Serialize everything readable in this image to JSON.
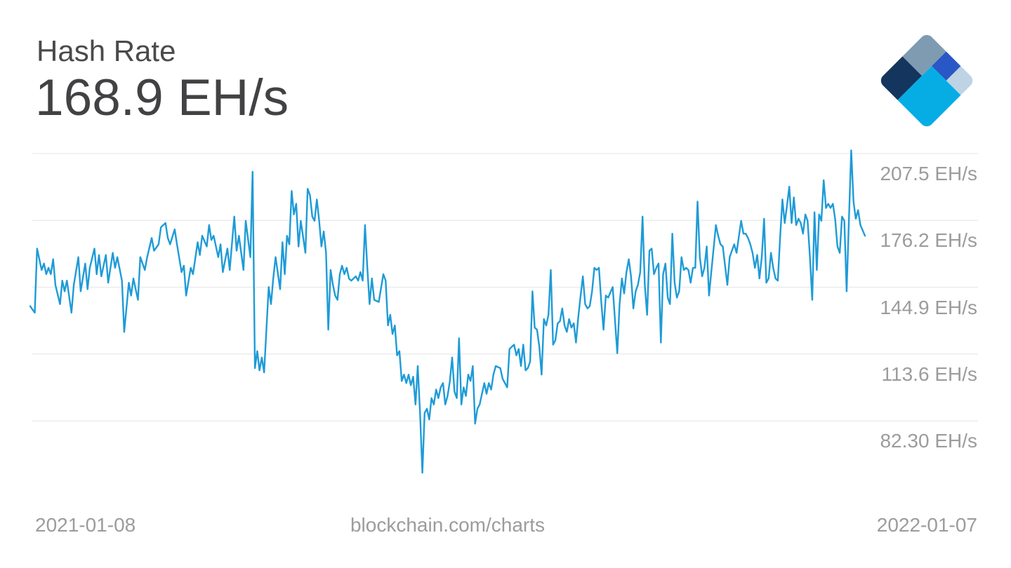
{
  "header": {
    "title": "Hash Rate",
    "value": "168.9 EH/s"
  },
  "logo": {
    "name": "blockchain-com-logo",
    "colors": {
      "slate": "#7E9BB2",
      "navy": "#14355E",
      "royal": "#2A57C6",
      "pale": "#BED3E3",
      "cyan": "#06ADE5"
    }
  },
  "footer": {
    "left_label": "2021-01-08",
    "watermark": "blockchain.com/charts",
    "right_label": "2022-01-07"
  },
  "chart_data": {
    "type": "line",
    "title": "Hash Rate",
    "current_value_label": "168.9 EH/s",
    "unit": "EH/s",
    "x_start": "2021-01-08",
    "x_end": "2022-01-07",
    "x_span_days": 364,
    "grid_on": true,
    "legend": "none",
    "line_color": "#1e9bd7",
    "grid_color": "#e4e4e4",
    "ylim": [
      50,
      215
    ],
    "y_gridline_values": [
      207.5,
      176.2,
      144.9,
      113.6,
      82.3
    ],
    "y_ticks": [
      "207.5 EH/s",
      "176.2 EH/s",
      "144.9 EH/s",
      "113.6 EH/s",
      "82.30 EH/s"
    ],
    "points": [
      [
        0,
        136
      ],
      [
        2,
        133
      ],
      [
        3,
        163
      ],
      [
        5,
        153
      ],
      [
        6,
        156
      ],
      [
        7,
        151
      ],
      [
        8,
        154
      ],
      [
        9,
        151
      ],
      [
        10,
        158
      ],
      [
        11,
        146
      ],
      [
        13,
        137
      ],
      [
        14,
        148
      ],
      [
        15,
        143
      ],
      [
        16,
        148
      ],
      [
        18,
        133
      ],
      [
        19,
        146
      ],
      [
        21,
        159
      ],
      [
        22,
        143
      ],
      [
        24,
        156
      ],
      [
        25,
        144
      ],
      [
        26,
        154
      ],
      [
        28,
        163
      ],
      [
        29,
        151
      ],
      [
        30,
        160
      ],
      [
        31,
        150
      ],
      [
        33,
        160
      ],
      [
        34,
        147
      ],
      [
        36,
        161
      ],
      [
        37,
        154
      ],
      [
        38,
        159
      ],
      [
        40,
        148
      ],
      [
        41,
        124
      ],
      [
        43,
        147
      ],
      [
        44,
        141
      ],
      [
        45,
        149
      ],
      [
        47,
        139
      ],
      [
        48,
        159
      ],
      [
        50,
        153
      ],
      [
        51,
        159
      ],
      [
        53,
        168
      ],
      [
        54,
        162
      ],
      [
        56,
        165
      ],
      [
        57,
        173
      ],
      [
        59,
        175
      ],
      [
        60,
        168
      ],
      [
        61,
        165
      ],
      [
        63,
        172
      ],
      [
        64,
        165
      ],
      [
        66,
        152
      ],
      [
        67,
        155
      ],
      [
        68,
        141
      ],
      [
        70,
        154
      ],
      [
        71,
        151
      ],
      [
        73,
        166
      ],
      [
        74,
        160
      ],
      [
        75,
        169
      ],
      [
        77,
        164
      ],
      [
        78,
        174
      ],
      [
        79,
        167
      ],
      [
        80,
        169
      ],
      [
        82,
        159
      ],
      [
        83,
        165
      ],
      [
        84,
        152
      ],
      [
        86,
        163
      ],
      [
        87,
        153
      ],
      [
        89,
        178
      ],
      [
        90,
        162
      ],
      [
        91,
        169
      ],
      [
        93,
        153
      ],
      [
        94,
        176
      ],
      [
        96,
        159
      ],
      [
        97,
        199
      ],
      [
        98,
        107
      ],
      [
        99,
        115
      ],
      [
        100,
        106
      ],
      [
        101,
        112
      ],
      [
        102,
        105
      ],
      [
        104,
        145
      ],
      [
        105,
        137
      ],
      [
        106,
        149
      ],
      [
        107,
        159
      ],
      [
        109,
        144
      ],
      [
        110,
        166
      ],
      [
        111,
        151
      ],
      [
        112,
        169
      ],
      [
        113,
        165
      ],
      [
        114,
        190
      ],
      [
        115,
        179
      ],
      [
        116,
        184
      ],
      [
        117,
        164
      ],
      [
        118,
        176
      ],
      [
        120,
        161
      ],
      [
        121,
        191
      ],
      [
        122,
        188
      ],
      [
        123,
        178
      ],
      [
        124,
        176
      ],
      [
        125,
        186
      ],
      [
        126,
        176
      ],
      [
        127,
        164
      ],
      [
        128,
        171
      ],
      [
        129,
        161
      ],
      [
        130,
        125
      ],
      [
        131,
        153
      ],
      [
        132,
        146
      ],
      [
        133,
        141
      ],
      [
        134,
        139
      ],
      [
        135,
        151
      ],
      [
        136,
        155
      ],
      [
        137,
        151
      ],
      [
        138,
        154
      ],
      [
        139,
        149
      ],
      [
        140,
        148
      ],
      [
        141,
        149
      ],
      [
        142,
        150
      ],
      [
        143,
        148
      ],
      [
        144,
        152
      ],
      [
        145,
        148
      ],
      [
        146,
        174
      ],
      [
        147,
        154
      ],
      [
        148,
        137
      ],
      [
        149,
        149
      ],
      [
        150,
        139
      ],
      [
        152,
        138
      ],
      [
        154,
        151
      ],
      [
        155,
        148
      ],
      [
        156,
        127
      ],
      [
        157,
        132
      ],
      [
        158,
        123
      ],
      [
        159,
        127
      ],
      [
        160,
        113
      ],
      [
        161,
        115
      ],
      [
        162,
        101
      ],
      [
        163,
        104
      ],
      [
        164,
        100
      ],
      [
        165,
        104
      ],
      [
        166,
        99
      ],
      [
        167,
        103
      ],
      [
        168,
        90
      ],
      [
        169,
        108
      ],
      [
        170,
        86
      ],
      [
        171,
        58
      ],
      [
        172,
        86
      ],
      [
        173,
        88
      ],
      [
        174,
        83
      ],
      [
        175,
        93
      ],
      [
        176,
        90
      ],
      [
        177,
        97
      ],
      [
        178,
        93
      ],
      [
        179,
        98
      ],
      [
        180,
        100
      ],
      [
        181,
        90
      ],
      [
        182,
        94
      ],
      [
        183,
        101
      ],
      [
        184,
        112
      ],
      [
        185,
        96
      ],
      [
        186,
        93
      ],
      [
        187,
        121
      ],
      [
        188,
        90
      ],
      [
        189,
        98
      ],
      [
        190,
        94
      ],
      [
        191,
        104
      ],
      [
        192,
        101
      ],
      [
        193,
        108
      ],
      [
        194,
        81
      ],
      [
        195,
        88
      ],
      [
        196,
        90
      ],
      [
        197,
        95
      ],
      [
        198,
        100
      ],
      [
        199,
        95
      ],
      [
        200,
        100
      ],
      [
        201,
        97
      ],
      [
        202,
        104
      ],
      [
        203,
        108
      ],
      [
        205,
        107
      ],
      [
        206,
        102
      ],
      [
        208,
        98
      ],
      [
        209,
        116
      ],
      [
        211,
        118
      ],
      [
        212,
        113
      ],
      [
        213,
        116
      ],
      [
        214,
        108
      ],
      [
        215,
        118
      ],
      [
        216,
        106
      ],
      [
        217,
        107
      ],
      [
        218,
        110
      ],
      [
        219,
        143
      ],
      [
        220,
        126
      ],
      [
        221,
        125
      ],
      [
        222,
        117
      ],
      [
        223,
        104
      ],
      [
        224,
        130
      ],
      [
        225,
        127
      ],
      [
        226,
        132
      ],
      [
        227,
        153
      ],
      [
        228,
        118
      ],
      [
        229,
        120
      ],
      [
        230,
        128
      ],
      [
        231,
        129
      ],
      [
        232,
        135
      ],
      [
        233,
        127
      ],
      [
        234,
        124
      ],
      [
        235,
        130
      ],
      [
        236,
        126
      ],
      [
        237,
        128
      ],
      [
        238,
        119
      ],
      [
        239,
        131
      ],
      [
        240,
        141
      ],
      [
        241,
        150
      ],
      [
        242,
        137
      ],
      [
        243,
        135
      ],
      [
        244,
        136
      ],
      [
        245,
        143
      ],
      [
        246,
        154
      ],
      [
        247,
        153
      ],
      [
        248,
        154
      ],
      [
        249,
        138
      ],
      [
        250,
        125
      ],
      [
        251,
        141
      ],
      [
        252,
        140
      ],
      [
        254,
        145
      ],
      [
        256,
        114
      ],
      [
        257,
        137
      ],
      [
        258,
        149
      ],
      [
        259,
        142
      ],
      [
        260,
        152
      ],
      [
        261,
        158
      ],
      [
        262,
        150
      ],
      [
        263,
        135
      ],
      [
        264,
        143
      ],
      [
        265,
        146
      ],
      [
        266,
        152
      ],
      [
        267,
        178
      ],
      [
        268,
        146
      ],
      [
        269,
        132
      ],
      [
        270,
        162
      ],
      [
        271,
        163
      ],
      [
        272,
        151
      ],
      [
        273,
        154
      ],
      [
        274,
        156
      ],
      [
        275,
        119
      ],
      [
        276,
        151
      ],
      [
        277,
        156
      ],
      [
        278,
        140
      ],
      [
        279,
        137
      ],
      [
        280,
        170
      ],
      [
        281,
        147
      ],
      [
        282,
        140
      ],
      [
        283,
        143
      ],
      [
        284,
        159
      ],
      [
        285,
        153
      ],
      [
        286,
        154
      ],
      [
        287,
        153
      ],
      [
        288,
        147
      ],
      [
        289,
        154
      ],
      [
        290,
        154
      ],
      [
        291,
        185
      ],
      [
        292,
        159
      ],
      [
        293,
        150
      ],
      [
        294,
        154
      ],
      [
        295,
        164
      ],
      [
        296,
        141
      ],
      [
        297,
        152
      ],
      [
        299,
        174
      ],
      [
        300,
        169
      ],
      [
        301,
        165
      ],
      [
        302,
        164
      ],
      [
        304,
        146
      ],
      [
        305,
        159
      ],
      [
        306,
        162
      ],
      [
        307,
        165
      ],
      [
        308,
        161
      ],
      [
        310,
        176
      ],
      [
        311,
        170
      ],
      [
        312,
        170
      ],
      [
        313,
        168
      ],
      [
        314,
        165
      ],
      [
        315,
        161
      ],
      [
        316,
        154
      ],
      [
        317,
        160
      ],
      [
        318,
        149
      ],
      [
        319,
        159
      ],
      [
        320,
        177
      ],
      [
        321,
        147
      ],
      [
        322,
        149
      ],
      [
        323,
        161
      ],
      [
        324,
        154
      ],
      [
        325,
        149
      ],
      [
        326,
        148
      ],
      [
        327,
        168
      ],
      [
        328,
        186
      ],
      [
        329,
        175
      ],
      [
        330,
        183
      ],
      [
        331,
        192
      ],
      [
        332,
        175
      ],
      [
        333,
        187
      ],
      [
        334,
        174
      ],
      [
        335,
        177
      ],
      [
        336,
        175
      ],
      [
        337,
        170
      ],
      [
        338,
        179
      ],
      [
        339,
        176
      ],
      [
        340,
        159
      ],
      [
        341,
        139
      ],
      [
        342,
        180
      ],
      [
        343,
        153
      ],
      [
        344,
        179
      ],
      [
        345,
        176
      ],
      [
        346,
        195
      ],
      [
        347,
        182
      ],
      [
        348,
        184
      ],
      [
        349,
        182
      ],
      [
        350,
        184
      ],
      [
        351,
        177
      ],
      [
        352,
        164
      ],
      [
        353,
        161
      ],
      [
        354,
        178
      ],
      [
        355,
        176
      ],
      [
        356,
        143
      ],
      [
        357,
        176
      ],
      [
        358,
        209
      ],
      [
        359,
        185
      ],
      [
        360,
        177
      ],
      [
        361,
        181
      ],
      [
        362,
        174
      ],
      [
        364,
        169
      ]
    ]
  }
}
